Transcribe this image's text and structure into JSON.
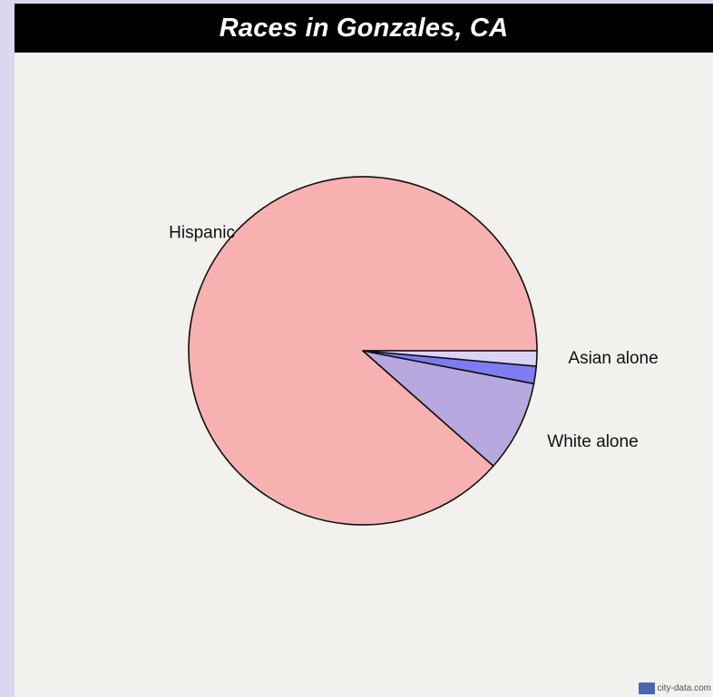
{
  "chart_data": {
    "type": "pie",
    "title": "Races in Gonzales, CA",
    "slices": [
      {
        "label": "Hispanic",
        "value": 87.6,
        "color": "#f6b1b0"
      },
      {
        "label": "White alone",
        "value": 8.4,
        "color": "#b7a8e0"
      },
      {
        "label": "Asian alone",
        "value": 1.6,
        "color": "#7d7cf2"
      },
      {
        "label": "",
        "value": 1.4,
        "color": "#dcd3f4"
      }
    ],
    "start_angle_deg": 0,
    "direction": "counterclockwise",
    "legend": "none"
  },
  "watermark": {
    "text": "city-data.com"
  }
}
